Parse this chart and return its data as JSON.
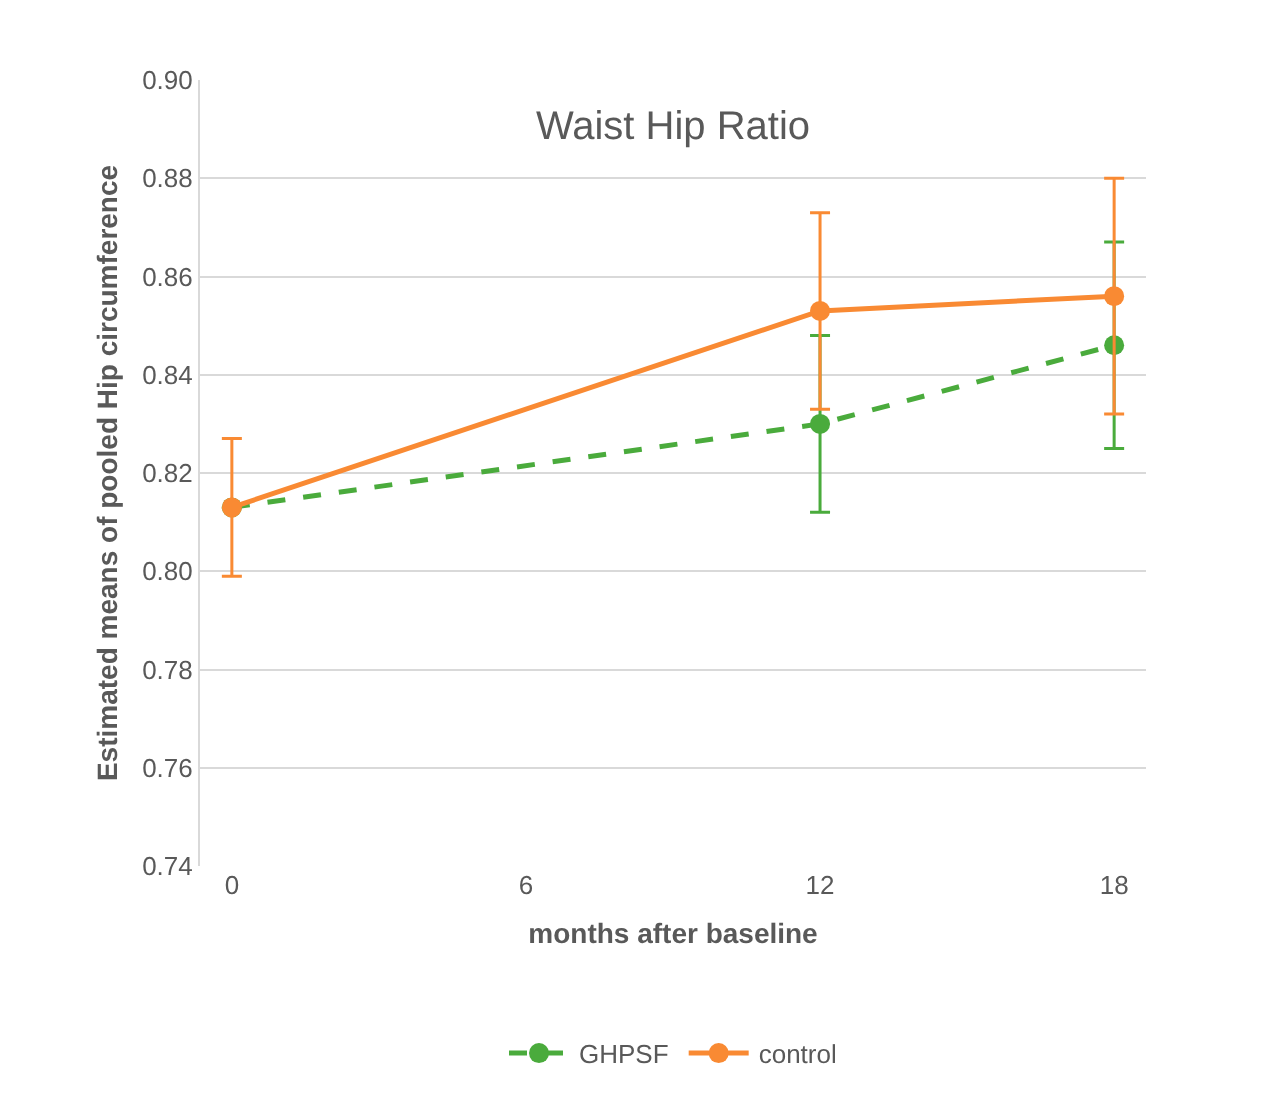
{
  "chart_data": {
    "type": "line",
    "title": "Waist Hip Ratio",
    "xlabel": "months after baseline",
    "ylabel": "Estimated means of pooled Hip circumference",
    "x": [
      0,
      12,
      18
    ],
    "series": [
      {
        "name": "GHPSF",
        "color": "#4aab3c",
        "values": [
          0.813,
          0.83,
          0.846
        ],
        "errors": [
          null,
          [
            0.812,
            0.848
          ],
          [
            0.825,
            0.867
          ]
        ],
        "line_style": "dashed"
      },
      {
        "name": "control",
        "color": "#f98a33",
        "values": [
          0.813,
          0.853,
          0.856
        ],
        "errors": [
          [
            0.799,
            0.827
          ],
          [
            0.833,
            0.873
          ],
          [
            0.832,
            0.88
          ]
        ],
        "line_style": "solid"
      }
    ],
    "xlim": [
      -0.65,
      18.65
    ],
    "xticks": [
      0,
      6,
      12,
      18
    ],
    "ylim": [
      0.74,
      0.9
    ],
    "yticks": [
      {
        "value": 0.74,
        "label": "0.74"
      },
      {
        "value": 0.76,
        "label": "0.76"
      },
      {
        "value": 0.78,
        "label": "0.78"
      },
      {
        "value": 0.8,
        "label": "0.80"
      },
      {
        "value": 0.82,
        "label": "0.82"
      },
      {
        "value": 0.84,
        "label": "0.84"
      },
      {
        "value": 0.86,
        "label": "0.86"
      },
      {
        "value": 0.88,
        "label": "0.88"
      },
      {
        "value": 0.9,
        "label": "0.90"
      }
    ],
    "grid": "y",
    "legend": "bottom",
    "marker": "circle"
  }
}
